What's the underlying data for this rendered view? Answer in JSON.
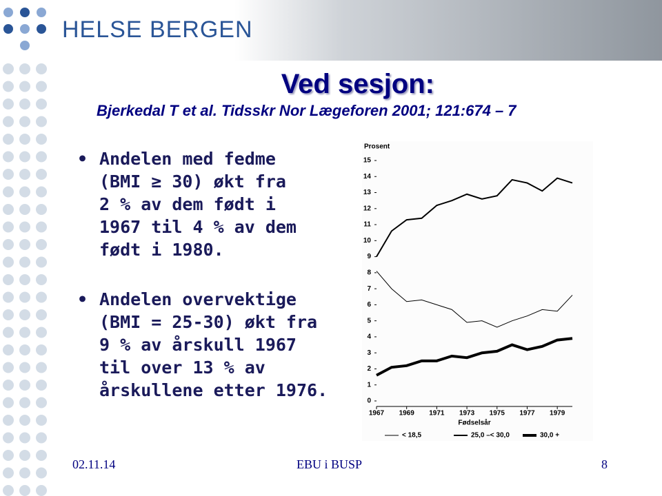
{
  "header": {
    "logo": "HELSE BERGEN"
  },
  "slide": {
    "title": "Ved sesjon:",
    "subtitle": "Bjerkedal T et al. Tidsskr Nor Lægeforen 2001; 121:674 – 7",
    "bullets": [
      [
        "Andelen med fedme",
        "(BMI ≥ 30) økt fra",
        "2 % av dem født i",
        "1967 til 4 % av dem",
        "født i 1980."
      ],
      [
        "Andelen overvektige",
        "(BMI = 25-30) økt fra",
        "9 % av årskull 1967",
        "til over 13 % av",
        "årskullene etter 1976."
      ]
    ]
  },
  "chart_data": {
    "type": "line",
    "y_label": "Prosent",
    "x_label": "Fødselsår",
    "x": [
      1967,
      1968,
      1969,
      1970,
      1971,
      1972,
      1973,
      1974,
      1975,
      1976,
      1977,
      1978,
      1979,
      1980
    ],
    "xlim": [
      1967,
      1980
    ],
    "xticks": [
      1967,
      1969,
      1971,
      1973,
      1975,
      1977,
      1979
    ],
    "ylim": [
      0,
      15
    ],
    "yticks": [
      0,
      1,
      2,
      3,
      4,
      5,
      6,
      7,
      8,
      9,
      10,
      11,
      12,
      13,
      14,
      15
    ],
    "series": [
      {
        "name": "< 18,5",
        "color": "#000000",
        "width": 1,
        "values": [
          8.1,
          7.0,
          6.2,
          6.3,
          6.0,
          5.7,
          4.9,
          5.0,
          4.6,
          5.0,
          5.3,
          5.7,
          5.6,
          6.6
        ]
      },
      {
        "name": "25,0 –< 30,0",
        "color": "#000000",
        "width": 2,
        "values": [
          9.0,
          10.6,
          11.3,
          11.4,
          12.2,
          12.5,
          12.9,
          12.6,
          12.8,
          13.8,
          13.6,
          13.1,
          13.9,
          13.6
        ]
      },
      {
        "name": "30,0 +",
        "color": "#000000",
        "width": 4,
        "values": [
          1.6,
          2.1,
          2.2,
          2.5,
          2.5,
          2.8,
          2.7,
          3.0,
          3.1,
          3.5,
          3.2,
          3.4,
          3.8,
          3.9
        ]
      }
    ]
  },
  "footer": {
    "date": "02.11.14",
    "center": "EBU i BUSP",
    "page": "8"
  }
}
